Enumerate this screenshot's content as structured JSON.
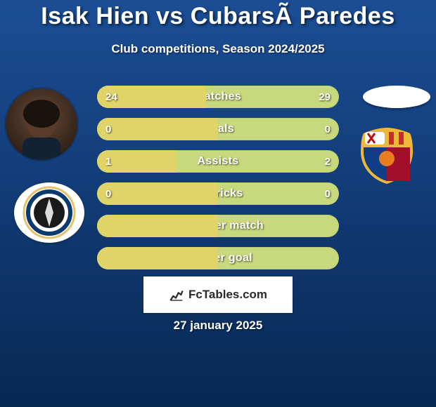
{
  "background": {
    "gradient_top": "#1b4d95",
    "gradient_bottom": "#072853"
  },
  "header": {
    "title": "Isak Hien vs CubarsÃ Paredes",
    "title_color": "#ffffff",
    "title_fontsize": 34,
    "subtitle": "Club competitions, Season 2024/2025",
    "subtitle_color": "#ffffff",
    "subtitle_fontsize": 17
  },
  "left_side": {
    "avatar_bg_top": "#6a4a36",
    "avatar_bg_bottom": "#2d1f17",
    "club_bg": "#ffffff",
    "club_stripe": "#0b3a6e",
    "club_inner": "#1a1a1a",
    "club_ring": "#e6c06a"
  },
  "right_side": {
    "avatar_bg": "#ffffff",
    "crest_blue": "#0f3e86",
    "crest_red": "#a30f2b",
    "crest_gold": "#f0b83a",
    "crest_orange": "#e77d1e"
  },
  "bars_common": {
    "height": 32,
    "radius": 16,
    "gap": 14,
    "left_color": "#e0d468",
    "right_color": "#c8d97d",
    "label_color": "#ffffff",
    "value_color": "#ffffff"
  },
  "bars": [
    {
      "label": "Matches",
      "left": "24",
      "right": "29",
      "split_pct": 45
    },
    {
      "label": "Goals",
      "left": "0",
      "right": "0",
      "split_pct": 50
    },
    {
      "label": "Assists",
      "left": "1",
      "right": "2",
      "split_pct": 33
    },
    {
      "label": "Hattricks",
      "left": "0",
      "right": "0",
      "split_pct": 50
    },
    {
      "label": "Goals per match",
      "left": "",
      "right": "",
      "split_pct": 50
    },
    {
      "label": "Min per goal",
      "left": "",
      "right": "",
      "split_pct": 50
    }
  ],
  "footer": {
    "brand": "FcTables.com",
    "brand_color": "#2a2a2a",
    "box_bg": "#ffffff",
    "icon_color": "#2a2a2a",
    "date": "27 january 2025",
    "date_color": "#ffffff"
  }
}
